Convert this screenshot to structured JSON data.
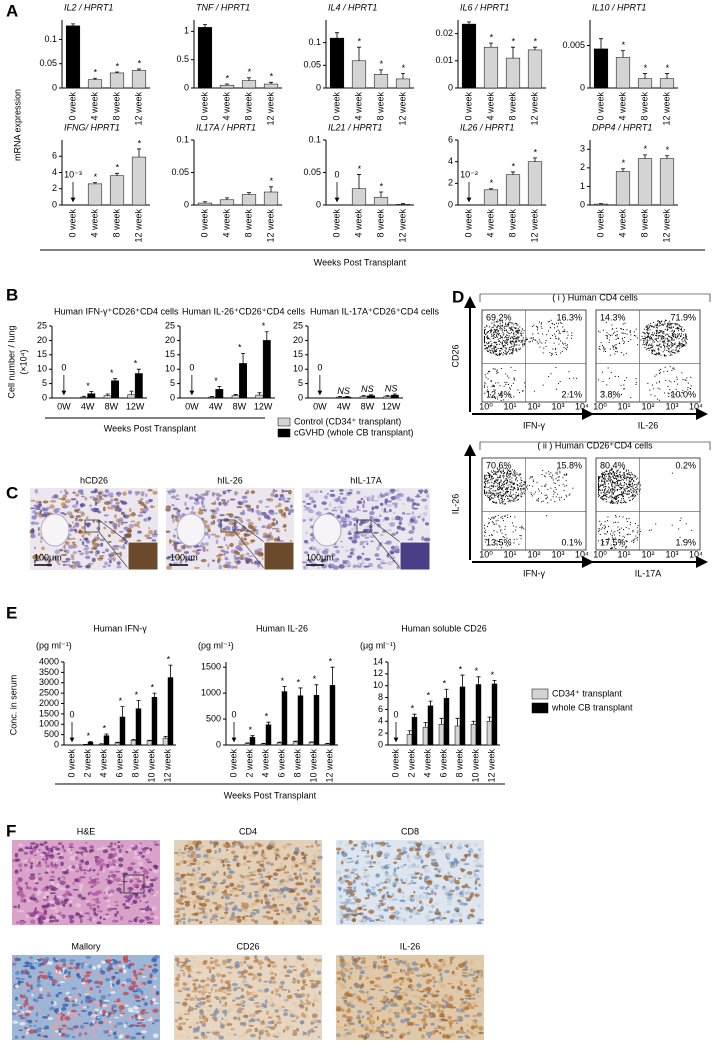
{
  "panel_a": {
    "letter": "A",
    "y_label": "mRNA expression",
    "x_label": "Weeks Post Transplant",
    "charts": [
      {
        "type": "bar",
        "title": "IL2 / HPRT1",
        "categories": [
          "0 week",
          "4 week",
          "8 week",
          "12 week"
        ],
        "values": [
          0.128,
          0.017,
          0.031,
          0.036
        ],
        "errors": [
          0.004,
          0.003,
          0.002,
          0.003
        ],
        "colors": [
          "#000000",
          "#d4d4d4",
          "#d4d4d4",
          "#d4d4d4"
        ],
        "annotations": [
          null,
          "*",
          "*",
          "*"
        ],
        "ylim": [
          0,
          0.14
        ],
        "yticks": [
          0,
          0.05,
          0.1
        ]
      },
      {
        "type": "bar",
        "title": "TNF / HPRT1",
        "categories": [
          "0 week",
          "4 week",
          "8 week",
          "12 week"
        ],
        "values": [
          1.07,
          0.05,
          0.13,
          0.07
        ],
        "errors": [
          0.05,
          0.02,
          0.05,
          0.03
        ],
        "colors": [
          "#000000",
          "#d4d4d4",
          "#d4d4d4",
          "#d4d4d4"
        ],
        "annotations": [
          null,
          "*",
          "*",
          "*"
        ],
        "ylim": [
          0,
          1.2
        ],
        "yticks": [
          0,
          0.5,
          1
        ]
      },
      {
        "type": "bar",
        "title": "IL4 / HPRT1",
        "categories": [
          "0 week",
          "4 week",
          "8 week",
          "12 week"
        ],
        "values": [
          0.11,
          0.06,
          0.03,
          0.02
        ],
        "errors": [
          0.012,
          0.03,
          0.01,
          0.012
        ],
        "colors": [
          "#000000",
          "#d4d4d4",
          "#d4d4d4",
          "#d4d4d4"
        ],
        "annotations": [
          null,
          "*",
          "*",
          "*"
        ],
        "ylim": [
          0,
          0.15
        ],
        "yticks": [
          0,
          0.05,
          0.1
        ]
      },
      {
        "type": "bar",
        "title": "IL6 / HPRT1",
        "categories": [
          "0 week",
          "4 week",
          "8 week",
          "12 week"
        ],
        "values": [
          0.0235,
          0.015,
          0.011,
          0.014
        ],
        "errors": [
          0.0008,
          0.0015,
          0.004,
          0.001
        ],
        "colors": [
          "#000000",
          "#d4d4d4",
          "#d4d4d4",
          "#d4d4d4"
        ],
        "annotations": [
          null,
          "*",
          "*",
          "*"
        ],
        "ylim": [
          0,
          0.025
        ],
        "yticks": [
          0,
          0.01,
          0.02
        ]
      },
      {
        "type": "bar",
        "title": "IL10 / HPRT1",
        "categories": [
          "0 week",
          "4 week",
          "8 week",
          "12 week"
        ],
        "values": [
          0.0046,
          0.0036,
          0.0011,
          0.0011
        ],
        "errors": [
          0.0012,
          0.0008,
          0.0006,
          0.0006
        ],
        "colors": [
          "#000000",
          "#d4d4d4",
          "#d4d4d4",
          "#d4d4d4"
        ],
        "annotations": [
          null,
          "*",
          "*",
          "*"
        ],
        "ylim": [
          0,
          0.008
        ],
        "yticks": [
          0,
          0.005
        ]
      },
      {
        "type": "bar",
        "title": "IFNG/ HPRT1",
        "categories": [
          "0 week",
          "4 week",
          "8 week",
          "12 week"
        ],
        "values": [
          0.001,
          2.6,
          3.6,
          5.9
        ],
        "errors": [
          0,
          0.15,
          0.3,
          1.0
        ],
        "colors": [
          "#d4d4d4",
          "#d4d4d4",
          "#d4d4d4",
          "#d4d4d4"
        ],
        "annotations": [
          "10⁻³",
          "*",
          "*",
          "*"
        ],
        "ylim": [
          0,
          8
        ],
        "yticks": [
          0,
          2,
          4,
          6
        ]
      },
      {
        "type": "bar",
        "title": "IL17A / HPRT1",
        "categories": [
          "0 week",
          "4 week",
          "8 week",
          "12 week"
        ],
        "values": [
          0.003,
          0.008,
          0.016,
          0.02
        ],
        "errors": [
          0.002,
          0.003,
          0.003,
          0.008
        ],
        "colors": [
          "#d4d4d4",
          "#d4d4d4",
          "#d4d4d4",
          "#d4d4d4"
        ],
        "annotations": [
          null,
          null,
          null,
          "*"
        ],
        "ylim": [
          0,
          0.1
        ],
        "yticks": [
          0,
          0.05,
          0.1
        ]
      },
      {
        "type": "bar",
        "title": "IL21 / HPRT1",
        "categories": [
          "0 week",
          "4 week",
          "8 week",
          "12 week"
        ],
        "values": [
          0,
          0.025,
          0.012,
          0.001
        ],
        "errors": [
          0,
          0.022,
          0.008,
          0.001
        ],
        "colors": [
          "#d4d4d4",
          "#d4d4d4",
          "#d4d4d4",
          "#d4d4d4"
        ],
        "annotations": [
          "0",
          "*",
          "*",
          null
        ],
        "ylim": [
          0,
          0.1
        ],
        "yticks": [
          0,
          0.05,
          0.1
        ]
      },
      {
        "type": "bar",
        "title": "IL26 / HPRT1",
        "categories": [
          "0 week",
          "4 week",
          "8 week",
          "12 week"
        ],
        "values": [
          0.01,
          1.4,
          2.8,
          4.0
        ],
        "errors": [
          0,
          0.1,
          0.25,
          0.35
        ],
        "colors": [
          "#d4d4d4",
          "#d4d4d4",
          "#d4d4d4",
          "#d4d4d4"
        ],
        "annotations": [
          "10⁻²",
          "*",
          "*",
          "*"
        ],
        "ylim": [
          0,
          6
        ],
        "yticks": [
          0,
          2,
          4,
          6
        ]
      },
      {
        "type": "bar",
        "title": "DPP4 / HPRT1",
        "categories": [
          "0 week",
          "4 week",
          "8 week",
          "12 week"
        ],
        "values": [
          0.05,
          1.8,
          2.5,
          2.5
        ],
        "errors": [
          0.02,
          0.15,
          0.2,
          0.15
        ],
        "colors": [
          "#d4d4d4",
          "#d4d4d4",
          "#d4d4d4",
          "#d4d4d4"
        ],
        "annotations": [
          null,
          "*",
          "*",
          "*"
        ],
        "ylim": [
          0,
          3.5
        ],
        "yticks": [
          0,
          1,
          2,
          3
        ]
      }
    ]
  },
  "panel_b": {
    "letter": "B",
    "y_label": "Cell number / lung",
    "y_unit": "(×10⁴)",
    "x_label": "Weeks Post Transplant",
    "legend": [
      {
        "name": "Control (CD34⁺ transplant)",
        "color": "#d4d4d4"
      },
      {
        "name": "cGVHD (whole CB transplant)",
        "color": "#000000"
      }
    ],
    "charts": [
      {
        "type": "bar",
        "title": "Human IFN-γ⁺CD26⁺CD4 cells",
        "categories": [
          "0W",
          "4W",
          "8W",
          "12W"
        ],
        "series": [
          {
            "values": [
              0,
              0.3,
              0.8,
              1.2
            ],
            "errors": [
              0,
              0.3,
              0.6,
              1.2
            ]
          },
          {
            "values": [
              0,
              1.5,
              6,
              8.5
            ],
            "errors": [
              0,
              0.8,
              0.7,
              1.5
            ]
          }
        ],
        "annotations": [
          "0",
          "*",
          "*",
          "*"
        ],
        "ylim": [
          0,
          25
        ],
        "yticks": [
          0,
          5,
          10,
          15,
          20,
          25
        ]
      },
      {
        "type": "bar",
        "title": "Human IL-26⁺CD26⁺CD4 cells",
        "categories": [
          "0W",
          "4W",
          "8W",
          "12W"
        ],
        "series": [
          {
            "values": [
              0,
              0.3,
              0.8,
              1.0
            ],
            "errors": [
              0,
              0.2,
              0.4,
              0.8
            ]
          },
          {
            "values": [
              0,
              3,
              12,
              20
            ],
            "errors": [
              0,
              1,
              3.5,
              3
            ]
          }
        ],
        "annotations": [
          "0",
          "*",
          "*",
          "*"
        ],
        "ylim": [
          0,
          25
        ],
        "yticks": [
          0,
          5,
          10,
          15,
          20,
          25
        ]
      },
      {
        "type": "bar",
        "title": "Human IL-17A⁺CD26⁺CD4 cells",
        "categories": [
          "0W",
          "4W",
          "8W",
          "12W"
        ],
        "series": [
          {
            "values": [
              0,
              0.3,
              0.5,
              0.5
            ],
            "errors": [
              0,
              0.2,
              0.3,
              0.3
            ]
          },
          {
            "values": [
              0,
              0.3,
              0.8,
              1.0
            ],
            "errors": [
              0,
              0.2,
              0.3,
              0.4
            ]
          }
        ],
        "annotations": [
          "0",
          "NS",
          "NS",
          "NS"
        ],
        "ylim": [
          0,
          25
        ],
        "yticks": [
          0,
          5,
          10,
          15,
          20,
          25
        ]
      }
    ]
  },
  "panel_c": {
    "letter": "C",
    "scale_bar": "100μm",
    "images": [
      "hCD26",
      "hIL-26",
      "hIL-17A"
    ]
  },
  "panel_d": {
    "letter": "D",
    "log_ticks": [
      "10⁰",
      "10¹",
      "10²",
      "10³",
      "10⁴"
    ],
    "groups": [
      {
        "title": "( i ) Human CD4 cells",
        "y_label": "CD26",
        "plots": [
          {
            "x_label": "IFN-γ",
            "quadrants": [
              "69.2%",
              "16.3%",
              "12.4%",
              "2.1%"
            ]
          },
          {
            "x_label": "IL-26",
            "quadrants": [
              "14.3%",
              "71.9%",
              "3.8%",
              "10.0%"
            ]
          }
        ]
      },
      {
        "title": "( ii ) Human CD26⁺CD4 cells",
        "y_label": "IL-26",
        "plots": [
          {
            "x_label": "IFN-γ",
            "quadrants": [
              "70.6%",
              "15.8%",
              "13.5%",
              "0.1%"
            ]
          },
          {
            "x_label": "IL-17A",
            "quadrants": [
              "80.4%",
              "0.2%",
              "17.5%",
              "1.9%"
            ]
          }
        ]
      }
    ]
  },
  "panel_e": {
    "letter": "E",
    "y_label": "Conc. in serum",
    "x_label": "Weeks Post Transplant",
    "legend": [
      {
        "name": "CD34⁺ transplant",
        "color": "#d4d4d4"
      },
      {
        "name": "whole CB transplant",
        "color": "#000000"
      }
    ],
    "charts": [
      {
        "type": "bar",
        "title": "Human IFN-γ",
        "unit": "(pg ml⁻¹)",
        "categories": [
          "0 week",
          "2 week",
          "4 week",
          "6 week",
          "8 week",
          "10 week",
          "12 week"
        ],
        "series": [
          {
            "values": [
              0,
              20,
              40,
              100,
              230,
              200,
              330
            ],
            "errors": [
              0,
              10,
              20,
              30,
              40,
              30,
              80
            ]
          },
          {
            "values": [
              0,
              130,
              450,
              1350,
              1750,
              2300,
              3250
            ],
            "errors": [
              0,
              40,
              80,
              500,
              400,
              200,
              600
            ]
          }
        ],
        "annotations": [
          "0",
          "*",
          "*",
          "*",
          "*",
          "*",
          "*"
        ],
        "ylim": [
          0,
          4000
        ],
        "yticks": [
          0,
          500,
          1000,
          1500,
          2000,
          2500,
          3000,
          3500,
          4000
        ]
      },
      {
        "type": "bar",
        "title": "Human IL-26",
        "unit": "(pg ml⁻¹)",
        "categories": [
          "0 week",
          "2 week",
          "4 week",
          "6 week",
          "8 week",
          "10 week",
          "12 week"
        ],
        "series": [
          {
            "values": [
              0,
              30,
              20,
              40,
              60,
              50,
              20
            ],
            "errors": [
              0,
              10,
              10,
              15,
              15,
              10,
              10
            ]
          },
          {
            "values": [
              0,
              150,
              390,
              1030,
              950,
              960,
              1150
            ],
            "errors": [
              0,
              30,
              50,
              100,
              150,
              200,
              350
            ]
          }
        ],
        "annotations": [
          "0",
          "*",
          "*",
          "*",
          "*",
          "*",
          "*"
        ],
        "ylim": [
          0,
          1600
        ],
        "yticks": [
          0,
          500,
          1000,
          1500
        ]
      },
      {
        "type": "bar",
        "title": "Human soluble CD26",
        "unit": "(μg ml⁻¹)",
        "categories": [
          "0 week",
          "2 week",
          "4 week",
          "6 week",
          "8 week",
          "10 week",
          "12 week"
        ],
        "series": [
          {
            "values": [
              0,
              1.8,
              3,
              3.5,
              3.2,
              3.5,
              4
            ],
            "errors": [
              0,
              0.6,
              0.8,
              1,
              1.3,
              0.5,
              0.7
            ]
          },
          {
            "values": [
              0,
              4.7,
              6.6,
              7.9,
              9.8,
              10.2,
              10.3
            ],
            "errors": [
              0,
              0.5,
              0.8,
              1.5,
              2,
              1.3,
              0.6
            ]
          }
        ],
        "annotations": [
          "0",
          "*",
          "*",
          "*",
          "*",
          "*",
          "*"
        ],
        "ylim": [
          0,
          14
        ],
        "yticks": [
          0,
          2,
          4,
          6,
          8,
          10,
          12,
          14
        ]
      }
    ]
  },
  "panel_f": {
    "letter": "F",
    "images": [
      "H&E",
      "CD4",
      "CD8",
      "Mallory",
      "CD26",
      "IL-26"
    ]
  }
}
